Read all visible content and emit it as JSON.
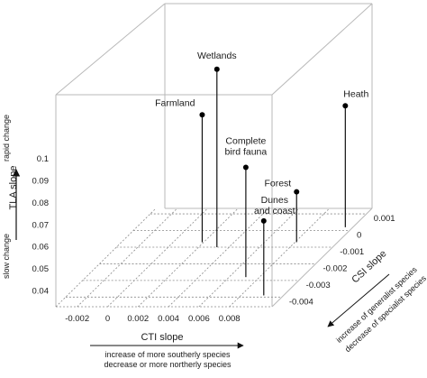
{
  "chart_data": {
    "type": "scatter",
    "x_axis": {
      "label": "CTI slope",
      "ticks": [
        "-0.002",
        "0",
        "0.002",
        "0.004",
        "0.006",
        "0.008"
      ],
      "annotation": [
        "increase of more southerly species",
        "decrease or more northerly species"
      ]
    },
    "y_axis": {
      "label": "TLA slope",
      "ticks": [
        "0.04",
        "0.05",
        "0.06",
        "0.07",
        "0.08",
        "0.09",
        "0.1"
      ],
      "label_low": "slow change",
      "label_high": "rapid change"
    },
    "z_axis": {
      "label": "CSI slope",
      "ticks": [
        "-0.004",
        "-0.003",
        "-0.002",
        "-0.001",
        "0",
        "0.001"
      ],
      "annotation": [
        "increase of generalist species",
        "decrease of specialist species"
      ]
    },
    "points": [
      {
        "name": "Farmland",
        "label_lines": [
          "Farmland"
        ],
        "cti": 0.0019,
        "csi": -0.0007,
        "tla": 0.0905
      },
      {
        "name": "Wetlands",
        "label_lines": [
          "Wetlands"
        ],
        "cti": 0.0032,
        "csi": -0.001,
        "tla": 0.1135
      },
      {
        "name": "Complete bird fauna",
        "label_lines": [
          "Complete",
          "bird fauna"
        ],
        "cti": 0.0071,
        "csi": -0.0028,
        "tla": 0.0825
      },
      {
        "name": "Forest",
        "label_lines": [
          "Forest"
        ],
        "cti": 0.0081,
        "csi": -0.0007,
        "tla": 0.0555
      },
      {
        "name": "Dunes and coast",
        "label_lines": [
          "Dunes",
          "and coast"
        ],
        "cti": 0.0095,
        "csi": -0.0039,
        "tla": 0.0665
      },
      {
        "name": "Heath",
        "label_lines": [
          "Heath"
        ],
        "cti": 0.0103,
        "csi": 0.0002,
        "tla": 0.0878
      }
    ]
  }
}
